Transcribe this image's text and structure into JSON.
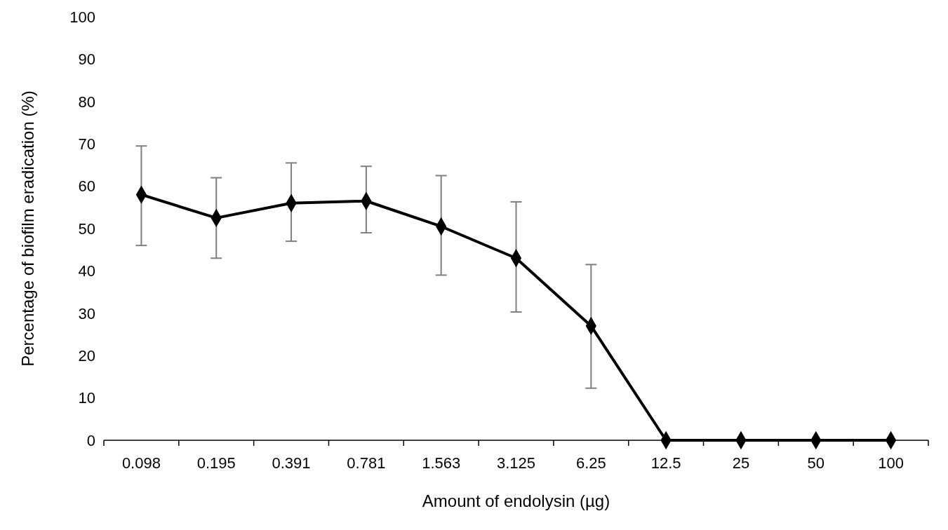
{
  "chart_data": {
    "type": "line",
    "xlabel": "Amount of endolysin (µg)",
    "ylabel": "Percentage of biofilm eradication (%)",
    "categories": [
      "0.098",
      "0.195",
      "0.391",
      "0.781",
      "1.563",
      "3.125",
      "6.25",
      "12.5",
      "25",
      "50",
      "100"
    ],
    "series": [
      {
        "color": "#000000",
        "values": [
          58,
          52.5,
          56,
          56.5,
          50.5,
          43,
          27,
          0,
          0,
          0,
          0
        ],
        "errors": [
          [
            46,
            69.5
          ],
          [
            43,
            62
          ],
          [
            47,
            65.5
          ],
          [
            49,
            64.7
          ],
          [
            39,
            62.5
          ],
          [
            30.3,
            56.3
          ],
          [
            12.3,
            41.5
          ],
          null,
          null,
          null,
          null
        ]
      }
    ],
    "ylim": [
      0,
      100
    ],
    "yticks": [
      0,
      10,
      20,
      30,
      40,
      50,
      60,
      70,
      80,
      90,
      100
    ],
    "marker": "diamond",
    "line_style": "solid",
    "grid": false
  }
}
